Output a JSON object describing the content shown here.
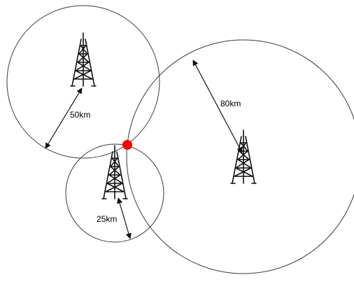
{
  "diagram": {
    "towers": [
      {
        "id": "tower-a",
        "radius_label": "50km"
      },
      {
        "id": "tower-b",
        "radius_label": "80km"
      },
      {
        "id": "tower-c",
        "radius_label": "25km"
      }
    ],
    "intersection_color": "#ff0000",
    "icons": [
      "radio-tower-icon",
      "radio-tower-icon",
      "radio-tower-icon",
      "intersection-point"
    ]
  }
}
